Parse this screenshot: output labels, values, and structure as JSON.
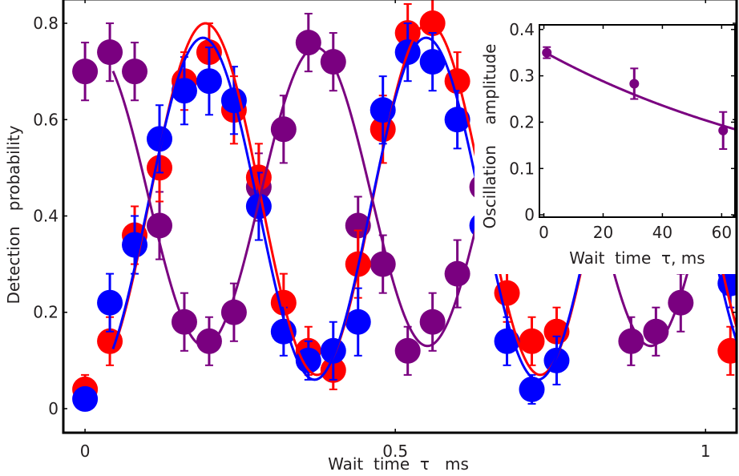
{
  "chart_data": [
    {
      "id": "main",
      "type": "scatter",
      "title": "",
      "xlabel": "Wait  time  τ   ms",
      "ylabel": "Detection   probability",
      "xlim": [
        -0.035,
        1.05
      ],
      "ylim": [
        -0.05,
        0.85
      ],
      "xticks": [
        0,
        0.5,
        1
      ],
      "xtick_labels": [
        "0",
        "0.5",
        "1"
      ],
      "yticks": [
        0,
        0.2,
        0.4,
        0.6,
        0.8
      ],
      "ytick_labels": [
        "0",
        "0.2",
        "0.4",
        "0.6",
        "0.8"
      ],
      "grid": false,
      "legend": "none",
      "series": [
        {
          "name": "red",
          "color": "#ff0000",
          "x": [
            0,
            0.04,
            0.08,
            0.12,
            0.16,
            0.2,
            0.24,
            0.28,
            0.32,
            0.36,
            0.4,
            0.44,
            0.48,
            0.52,
            0.56,
            0.6,
            0.68,
            0.72,
            0.76,
            1.04
          ],
          "y": [
            0.04,
            0.14,
            0.36,
            0.5,
            0.68,
            0.74,
            0.62,
            0.48,
            0.22,
            0.12,
            0.08,
            0.3,
            0.58,
            0.78,
            0.8,
            0.68,
            0.24,
            0.14,
            0.16,
            0.12
          ],
          "err": [
            0.03,
            0.05,
            0.06,
            0.07,
            0.06,
            0.06,
            0.07,
            0.07,
            0.06,
            0.05,
            0.04,
            0.07,
            0.07,
            0.06,
            0.06,
            0.06,
            0.06,
            0.05,
            0.05,
            0.05
          ],
          "fit": {
            "model": "offset + amp*cos(2*pi*f*(x - x0))",
            "offset": 0.435,
            "amp": 0.365,
            "freq": 2.78,
            "x0": 0.194,
            "xrange": [
              0.045,
              1.05
            ]
          }
        },
        {
          "name": "blue",
          "color": "#0000ff",
          "x": [
            0,
            0.04,
            0.08,
            0.12,
            0.16,
            0.2,
            0.24,
            0.28,
            0.32,
            0.36,
            0.4,
            0.44,
            0.48,
            0.52,
            0.56,
            0.6,
            0.64,
            0.68,
            0.72,
            0.76,
            1.04
          ],
          "y": [
            0.02,
            0.22,
            0.34,
            0.56,
            0.66,
            0.68,
            0.64,
            0.42,
            0.16,
            0.1,
            0.12,
            0.18,
            0.62,
            0.74,
            0.72,
            0.6,
            0.38,
            0.14,
            0.04,
            0.1,
            0.26
          ],
          "err": [
            0.02,
            0.06,
            0.06,
            0.07,
            0.07,
            0.07,
            0.07,
            0.07,
            0.05,
            0.04,
            0.06,
            0.07,
            0.07,
            0.06,
            0.06,
            0.06,
            0.07,
            0.05,
            0.03,
            0.05,
            0.05
          ],
          "fit": {
            "model": "offset + amp*cos(2*pi*f*(x - x0))",
            "offset": 0.415,
            "amp": 0.355,
            "freq": 2.78,
            "x0": 0.19,
            "xrange": [
              0.045,
              1.05
            ]
          }
        },
        {
          "name": "purple",
          "color": "#7a0080",
          "x": [
            0,
            0.04,
            0.08,
            0.12,
            0.16,
            0.2,
            0.24,
            0.28,
            0.32,
            0.36,
            0.4,
            0.44,
            0.48,
            0.52,
            0.56,
            0.6,
            0.64,
            0.88,
            0.92,
            0.96
          ],
          "y": [
            0.7,
            0.74,
            0.7,
            0.38,
            0.18,
            0.14,
            0.2,
            0.46,
            0.58,
            0.76,
            0.72,
            0.38,
            0.3,
            0.12,
            0.18,
            0.28,
            0.46,
            0.14,
            0.16,
            0.22
          ],
          "err": [
            0.06,
            0.06,
            0.06,
            0.07,
            0.06,
            0.05,
            0.06,
            0.07,
            0.07,
            0.06,
            0.06,
            0.06,
            0.06,
            0.05,
            0.06,
            0.07,
            0.07,
            0.05,
            0.05,
            0.06
          ],
          "fit": {
            "model": "offset + amp*cos(2*pi*f*(x - x0))",
            "offset": 0.44,
            "amp": 0.31,
            "freq": 2.78,
            "x0": 0.372,
            "xrange": [
              0.045,
              1.05
            ]
          }
        }
      ]
    },
    {
      "id": "inset",
      "type": "scatter",
      "title": "",
      "xlabel": "Wait  time  τ, ms",
      "ylabel": "Oscillation    amplitude",
      "xlim": [
        -1.5,
        64.5
      ],
      "ylim": [
        -0.005,
        0.41
      ],
      "xticks": [
        0,
        20,
        40,
        60
      ],
      "xtick_labels": [
        "0",
        "20",
        "40",
        "60"
      ],
      "yticks": [
        0,
        0.1,
        0.2,
        0.3,
        0.4
      ],
      "ytick_labels": [
        "0",
        "0.1",
        "0.2",
        "0.3",
        "0.4"
      ],
      "grid": false,
      "legend": "none",
      "series": [
        {
          "name": "amplitude",
          "color": "#7a0080",
          "x": [
            1,
            30.5,
            60.5
          ],
          "y": [
            0.35,
            0.283,
            0.182
          ],
          "err": [
            0.012,
            0.033,
            0.04
          ],
          "fit": {
            "model": "A*exp(-x/T)",
            "A": 0.352,
            "T": 100,
            "xrange": [
              0,
              64.5
            ]
          }
        }
      ]
    }
  ]
}
